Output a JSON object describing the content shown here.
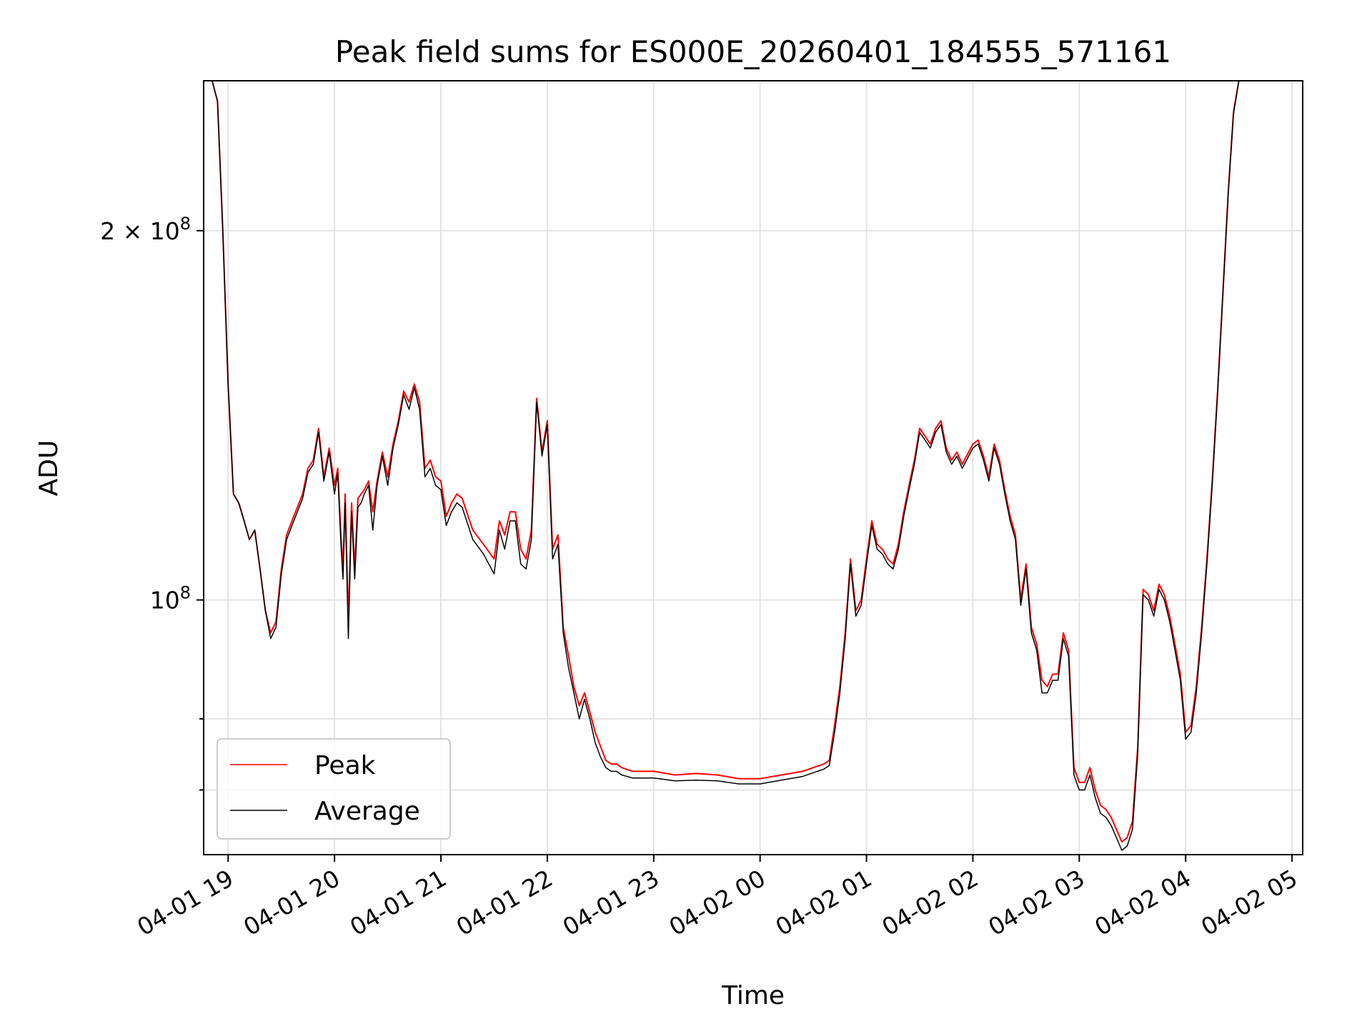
{
  "chart_data": {
    "type": "line",
    "title": "Peak field sums for ES000E_20260401_184555_571161",
    "xlabel": "Time",
    "ylabel": "ADU",
    "yscale": "log",
    "xlim_hours": [
      18.77,
      29.1
    ],
    "ylim": [
      62000000,
      265000000
    ],
    "x_ticks": [
      {
        "hour": 19,
        "label": "04-01 19"
      },
      {
        "hour": 20,
        "label": "04-01 20"
      },
      {
        "hour": 21,
        "label": "04-01 21"
      },
      {
        "hour": 22,
        "label": "04-01 22"
      },
      {
        "hour": 23,
        "label": "04-01 23"
      },
      {
        "hour": 24,
        "label": "04-02 00"
      },
      {
        "hour": 25,
        "label": "04-02 01"
      },
      {
        "hour": 26,
        "label": "04-02 02"
      },
      {
        "hour": 27,
        "label": "04-02 03"
      },
      {
        "hour": 28,
        "label": "04-02 04"
      },
      {
        "hour": 29,
        "label": "04-02 05"
      }
    ],
    "y_major_ticks": [
      {
        "value": 100000000,
        "base": "10",
        "exp": "8"
      },
      {
        "value": 200000000,
        "base": "2 × 10",
        "exp": "8"
      }
    ],
    "y_minor_ticks": [
      70000000,
      80000000
    ],
    "grid": true,
    "legend_position": "lower left",
    "x_hours": [
      18.77,
      18.85,
      18.9,
      18.95,
      19.0,
      19.05,
      19.1,
      19.15,
      19.2,
      19.25,
      19.3,
      19.35,
      19.4,
      19.45,
      19.5,
      19.55,
      19.6,
      19.7,
      19.75,
      19.8,
      19.85,
      19.9,
      19.95,
      20.0,
      20.03,
      20.06,
      20.08,
      20.1,
      20.13,
      20.16,
      20.19,
      20.22,
      20.25,
      20.28,
      20.32,
      20.36,
      20.4,
      20.45,
      20.5,
      20.55,
      20.6,
      20.65,
      20.7,
      20.75,
      20.8,
      20.85,
      20.9,
      20.95,
      21.0,
      21.05,
      21.1,
      21.15,
      21.2,
      21.3,
      21.4,
      21.5,
      21.55,
      21.6,
      21.65,
      21.7,
      21.75,
      21.8,
      21.85,
      21.9,
      21.95,
      22.0,
      22.05,
      22.1,
      22.15,
      22.2,
      22.25,
      22.3,
      22.35,
      22.4,
      22.45,
      22.5,
      22.55,
      22.6,
      22.65,
      22.7,
      22.8,
      23.0,
      23.2,
      23.4,
      23.6,
      23.8,
      24.0,
      24.2,
      24.4,
      24.5,
      24.6,
      24.65,
      24.7,
      24.75,
      24.8,
      24.85,
      24.9,
      24.95,
      25.0,
      25.05,
      25.1,
      25.15,
      25.2,
      25.25,
      25.3,
      25.35,
      25.4,
      25.45,
      25.5,
      25.55,
      25.6,
      25.65,
      25.7,
      25.75,
      25.8,
      25.85,
      25.9,
      26.0,
      26.05,
      26.1,
      26.15,
      26.2,
      26.25,
      26.3,
      26.35,
      26.4,
      26.45,
      26.5,
      26.55,
      26.6,
      26.65,
      26.7,
      26.75,
      26.8,
      26.85,
      26.9,
      26.95,
      27.0,
      27.05,
      27.1,
      27.15,
      27.2,
      27.25,
      27.3,
      27.35,
      27.4,
      27.45,
      27.5,
      27.55,
      27.6,
      27.65,
      27.7,
      27.75,
      27.8,
      27.85,
      27.9,
      27.95,
      28.0,
      28.05,
      28.1,
      28.15,
      28.2,
      28.25,
      28.3,
      28.35,
      28.4,
      28.45,
      28.5,
      28.55,
      28.6,
      28.65,
      28.7,
      28.75,
      28.8,
      28.85,
      28.9,
      28.95,
      29.0,
      29.05,
      29.1
    ],
    "series": [
      {
        "name": "Peak",
        "color": "#ff0000",
        "values": [
          265000000,
          265000000,
          255000000,
          200000000,
          150000000,
          122000000,
          120000000,
          116000000,
          112000000,
          114000000,
          106000000,
          98000000,
          94000000,
          96000000,
          106000000,
          113000000,
          116000000,
          122000000,
          128000000,
          130000000,
          138000000,
          126000000,
          133000000,
          124000000,
          128000000,
          113000000,
          106000000,
          122000000,
          96000000,
          120000000,
          106000000,
          121000000,
          122000000,
          123000000,
          125000000,
          118000000,
          125000000,
          132000000,
          126000000,
          134000000,
          140000000,
          148000000,
          145000000,
          150000000,
          145000000,
          128000000,
          130000000,
          126000000,
          125000000,
          117000000,
          120000000,
          122000000,
          121000000,
          114000000,
          111000000,
          108000000,
          116000000,
          113000000,
          118000000,
          118000000,
          110000000,
          108000000,
          114000000,
          146000000,
          132000000,
          140000000,
          110000000,
          113000000,
          95000000,
          90000000,
          85000000,
          82000000,
          84000000,
          81000000,
          78000000,
          76000000,
          74000000,
          73500000,
          73500000,
          73000000,
          72500000,
          72500000,
          72000000,
          72200000,
          72000000,
          71500000,
          71500000,
          72000000,
          72500000,
          73000000,
          73500000,
          74000000,
          79000000,
          85000000,
          94000000,
          108000000,
          98000000,
          100000000,
          108000000,
          116000000,
          111000000,
          110000000,
          108000000,
          107000000,
          111000000,
          118000000,
          124000000,
          130000000,
          138000000,
          136000000,
          134000000,
          138000000,
          140000000,
          133000000,
          130000000,
          132000000,
          129000000,
          134000000,
          135000000,
          131000000,
          126000000,
          134000000,
          130000000,
          123000000,
          117000000,
          113000000,
          100000000,
          107000000,
          95000000,
          92000000,
          86000000,
          85000000,
          87000000,
          87000000,
          94000000,
          91000000,
          73000000,
          71000000,
          71000000,
          73000000,
          70000000,
          68000000,
          67500000,
          66500000,
          65000000,
          63500000,
          64000000,
          66000000,
          76000000,
          102000000,
          101000000,
          98000000,
          103000000,
          101000000,
          97000000,
          92000000,
          87000000,
          78000000,
          79000000,
          85000000,
          95000000,
          108000000,
          125000000,
          148000000,
          178000000,
          215000000,
          250000000,
          265000000,
          265000000,
          265000000
        ]
      },
      {
        "name": "Average",
        "color": "#000000",
        "values": [
          265000000,
          265000000,
          255000000,
          200000000,
          150000000,
          122000000,
          120000000,
          116000000,
          112000000,
          114000000,
          106000000,
          98000000,
          93000000,
          95000000,
          105000000,
          112000000,
          115000000,
          121000000,
          127000000,
          129000000,
          137000000,
          125000000,
          132000000,
          122000000,
          127000000,
          111000000,
          104000000,
          120000000,
          93000000,
          118000000,
          104000000,
          119000000,
          120000000,
          122000000,
          124000000,
          114000000,
          124000000,
          131000000,
          124000000,
          133000000,
          139000000,
          147000000,
          143000000,
          149000000,
          143000000,
          126000000,
          128000000,
          124000000,
          123000000,
          115000000,
          118000000,
          120000000,
          119000000,
          112000000,
          109000000,
          105000000,
          114000000,
          110000000,
          116000000,
          116000000,
          107000000,
          106000000,
          112000000,
          145000000,
          131000000,
          139000000,
          108000000,
          111000000,
          94000000,
          88000000,
          84000000,
          80000000,
          83000000,
          80000000,
          76500000,
          74500000,
          73000000,
          72500000,
          72500000,
          72000000,
          71600000,
          71600000,
          71200000,
          71300000,
          71200000,
          70800000,
          70800000,
          71300000,
          71800000,
          72300000,
          72800000,
          73300000,
          78000000,
          84000000,
          93000000,
          107000000,
          97000000,
          99000000,
          107000000,
          115000000,
          110000000,
          109000000,
          107000000,
          106000000,
          110000000,
          117000000,
          123000000,
          129000000,
          137000000,
          135000000,
          133000000,
          137000000,
          139000000,
          132000000,
          129000000,
          131000000,
          128000000,
          133000000,
          134000000,
          130000000,
          125000000,
          133000000,
          129000000,
          122000000,
          116000000,
          112000000,
          99000000,
          106000000,
          94000000,
          91000000,
          84000000,
          84000000,
          86000000,
          86000000,
          93000000,
          90000000,
          72000000,
          70000000,
          70000000,
          72000000,
          69000000,
          67000000,
          66500000,
          65500000,
          64000000,
          62500000,
          63000000,
          65000000,
          75000000,
          101000000,
          100000000,
          97000000,
          102000000,
          100000000,
          96000000,
          91000000,
          86000000,
          77000000,
          78000000,
          84000000,
          94000000,
          107000000,
          124000000,
          147000000,
          177000000,
          214000000,
          249000000,
          265000000,
          265000000,
          265000000
        ]
      }
    ]
  }
}
